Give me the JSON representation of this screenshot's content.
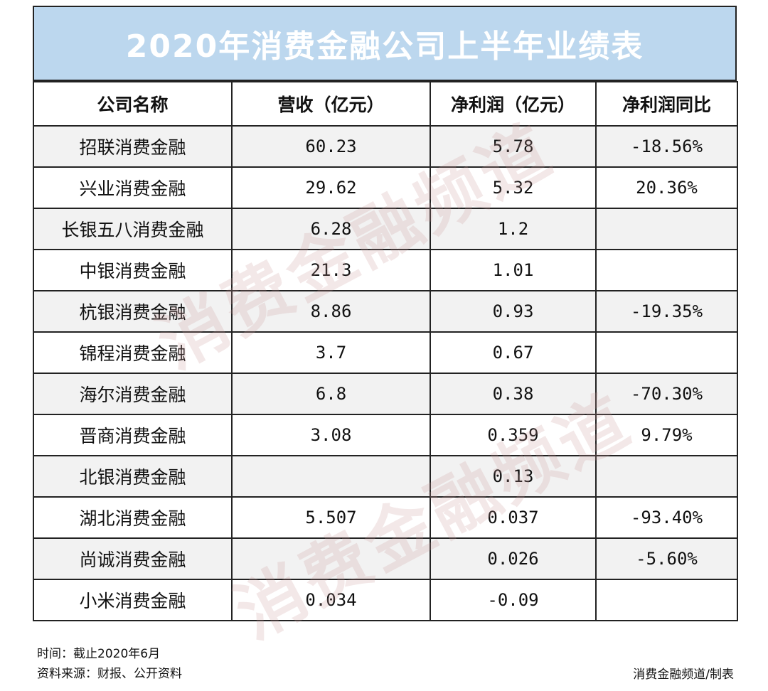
{
  "title": "2020年消费金融公司上半年业绩表",
  "table": {
    "headers": [
      "公司名称",
      "营收（亿元）",
      "净利润（亿元）",
      "净利润同比"
    ],
    "rows": [
      [
        "招联消费金融",
        "60.23",
        "5.78",
        "-18.56%"
      ],
      [
        "兴业消费金融",
        "29.62",
        "5.32",
        "20.36%"
      ],
      [
        "长银五八消费金融",
        "6.28",
        "1.2",
        ""
      ],
      [
        "中银消费金融",
        "21.3",
        "1.01",
        ""
      ],
      [
        "杭银消费金融",
        "8.86",
        "0.93",
        "-19.35%"
      ],
      [
        "锦程消费金融",
        "3.7",
        "0.67",
        ""
      ],
      [
        "海尔消费金融",
        "6.8",
        "0.38",
        "-70.30%"
      ],
      [
        "晋商消费金融",
        "3.08",
        "0.359",
        "9.79%"
      ],
      [
        "北银消费金融",
        "",
        "0.13",
        ""
      ],
      [
        "湖北消费金融",
        "5.507",
        "0.037",
        "-93.40%"
      ],
      [
        "尚诚消费金融",
        "",
        "0.026",
        "-5.60%"
      ],
      [
        "小米消费金融",
        "0.034",
        "-0.09",
        ""
      ]
    ]
  },
  "watermark": "消费金融频道",
  "footer": {
    "time": "时间：截止2020年6月",
    "source": "资料来源：财报、公开资料",
    "credit": "消费金融频道/制表"
  },
  "colors": {
    "title_bg": "#bcd7ee",
    "stripe": "#f2f2f2",
    "border": "#222222"
  }
}
